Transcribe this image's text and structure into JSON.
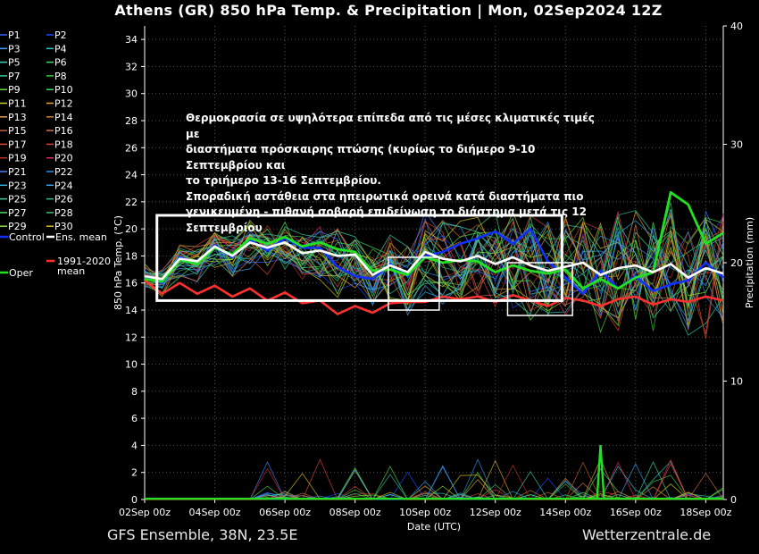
{
  "title": "Athens  (GR)  850 hPa Temp. & Precipitation | Mon, 02Sep2024 12Z",
  "footer_left": "GFS Ensemble, 38N, 23.5E",
  "footer_right": "Wetterzentrale.de",
  "annotation": [
    "Θερμοκρασία σε υψηλότερα επίπεδα από τις μέσες κλιματικές τιμές με",
    "διαστήματα πρόσκαιρης πτώσης (κυρίως το διήμερο 9-10 Σεπτεμβρίου και",
    "το τριήμερο 13-16 Σεπτεμβρίου.",
    "Σποραδική αστάθεια στα ηπειρωτικά ορεινά κατά διαστήματα πιο",
    "γενικευμένη - πιθανή σοβαρή επιδείνωση το διάστημα μετά τις 12",
    "Σεπτεμβρίου"
  ],
  "colors": {
    "ens_mean": "#ffffff",
    "climate_mean": "#ff3030",
    "oper": "#22e022",
    "control": "#1030ff",
    "box": "#ffffff"
  },
  "chart_data": {
    "type": "line",
    "xlabel": "Date (UTC)",
    "ylabel": "850 hPa Temp. (°C)",
    "y2label": "Precipitation (mm)",
    "ylim": [
      0,
      35
    ],
    "y2lim": [
      0,
      40
    ],
    "xlim_days": [
      0,
      16.5
    ],
    "yticks": [
      0,
      2,
      4,
      6,
      8,
      10,
      12,
      14,
      16,
      18,
      20,
      22,
      24,
      26,
      28,
      30,
      32,
      34
    ],
    "y2ticks": [
      0,
      10,
      20,
      30,
      40
    ],
    "xticks": [
      "02Sep 00z",
      "04Sep 00z",
      "06Sep 00z",
      "08Sep 00z",
      "10Sep 00z",
      "12Sep 00z",
      "14Sep 00z",
      "16Sep 00z",
      "18Sep 00z"
    ],
    "legend": [
      {
        "name": "P1",
        "color": "#3060ff"
      },
      {
        "name": "P2",
        "color": "#1848ff"
      },
      {
        "name": "P3",
        "color": "#3aa0ff"
      },
      {
        "name": "P4",
        "color": "#30c0c8"
      },
      {
        "name": "P5",
        "color": "#40d0c0"
      },
      {
        "name": "P6",
        "color": "#40d870"
      },
      {
        "name": "P7",
        "color": "#30c8a0"
      },
      {
        "name": "P8",
        "color": "#38c838"
      },
      {
        "name": "P9",
        "color": "#60e040"
      },
      {
        "name": "P10",
        "color": "#40e060"
      },
      {
        "name": "P11",
        "color": "#c8d020"
      },
      {
        "name": "P12",
        "color": "#d8b030"
      },
      {
        "name": "P13",
        "color": "#e0a040"
      },
      {
        "name": "P14",
        "color": "#d08030"
      },
      {
        "name": "P15",
        "color": "#c86030"
      },
      {
        "name": "P16",
        "color": "#d07050"
      },
      {
        "name": "P17",
        "color": "#e04830"
      },
      {
        "name": "P18",
        "color": "#d84040"
      },
      {
        "name": "P19",
        "color": "#c03028"
      },
      {
        "name": "P20",
        "color": "#e03060"
      },
      {
        "name": "P21",
        "color": "#4080ff"
      },
      {
        "name": "P22",
        "color": "#3090e0"
      },
      {
        "name": "P23",
        "color": "#30b0e0"
      },
      {
        "name": "P24",
        "color": "#40a0f0"
      },
      {
        "name": "P25",
        "color": "#40d0a0"
      },
      {
        "name": "P26",
        "color": "#30c090"
      },
      {
        "name": "P27",
        "color": "#50d850"
      },
      {
        "name": "P28",
        "color": "#40c070"
      },
      {
        "name": "P29",
        "color": "#90e030"
      },
      {
        "name": "P30",
        "color": "#d0c020"
      },
      {
        "name": "Control",
        "color": "#1030ff"
      },
      {
        "name": "Ens. mean",
        "color": "#ffffff"
      },
      {
        "name": "1991-2020 mean",
        "color": "#ff3030"
      },
      {
        "name": "Oper",
        "color": "#22e022"
      }
    ],
    "series": [
      {
        "name": "Ens. mean",
        "x": [
          0.0,
          0.5,
          1.0,
          1.5,
          2.0,
          2.5,
          3.0,
          3.5,
          4.0,
          4.5,
          5.0,
          5.5,
          6.0,
          6.5,
          7.0,
          7.5,
          8.0,
          8.5,
          9.0,
          9.5,
          10.0,
          10.5,
          11.0,
          11.5,
          12.0,
          12.5,
          13.0,
          13.5,
          14.0,
          14.5,
          15.0,
          15.5,
          16.0,
          16.5
        ],
        "y": [
          16.5,
          16.3,
          17.8,
          17.6,
          18.7,
          18.0,
          19.0,
          18.6,
          19.0,
          18.2,
          18.4,
          18.0,
          18.1,
          16.6,
          17.3,
          16.8,
          18.3,
          17.8,
          17.6,
          18.0,
          17.4,
          17.9,
          17.3,
          16.9,
          17.2,
          17.5,
          16.6,
          17.1,
          17.3,
          16.8,
          17.4,
          16.4,
          17.1,
          16.7
        ]
      },
      {
        "name": "1991-2020 mean",
        "x": [
          0.0,
          0.5,
          1.0,
          1.5,
          2.0,
          2.5,
          3.0,
          3.5,
          4.0,
          4.5,
          5.0,
          5.5,
          6.0,
          6.5,
          7.0,
          7.5,
          8.0,
          8.5,
          9.0,
          9.5,
          10.0,
          10.5,
          11.0,
          11.5,
          12.0,
          12.5,
          13.0,
          13.5,
          14.0,
          14.5,
          15.0,
          15.5,
          16.0,
          16.5
        ],
        "y": [
          16.2,
          15.2,
          16.0,
          15.2,
          15.8,
          15.0,
          15.6,
          14.7,
          15.3,
          14.5,
          14.7,
          13.7,
          14.3,
          13.8,
          14.5,
          14.6,
          14.6,
          15.0,
          14.8,
          15.0,
          14.6,
          15.1,
          14.7,
          14.3,
          14.9,
          14.7,
          14.3,
          14.8,
          15.0,
          14.4,
          14.8,
          14.6,
          15.0,
          14.7
        ]
      },
      {
        "name": "Control",
        "x": [
          0.0,
          0.5,
          1.0,
          1.5,
          2.0,
          2.5,
          3.0,
          3.5,
          4.0,
          4.5,
          5.0,
          5.5,
          6.0,
          6.5,
          7.0,
          7.5,
          8.0,
          8.5,
          9.0,
          9.5,
          10.0,
          10.5,
          11.0,
          11.5,
          12.0,
          12.5,
          13.0,
          13.5,
          14.0,
          14.5,
          15.0,
          15.5,
          16.0,
          16.5
        ],
        "y": [
          16.4,
          16.0,
          17.9,
          17.5,
          18.8,
          17.9,
          19.2,
          18.4,
          19.3,
          18.6,
          18.6,
          17.2,
          16.5,
          16.3,
          17.4,
          16.5,
          18.0,
          18.3,
          18.9,
          19.3,
          19.8,
          18.9,
          20.0,
          17.6,
          16.4,
          15.2,
          16.9,
          15.6,
          16.5,
          15.4,
          15.9,
          16.2,
          17.5,
          16.4
        ]
      },
      {
        "name": "Oper",
        "x": [
          0.0,
          0.5,
          1.0,
          1.5,
          2.0,
          2.5,
          3.0,
          3.5,
          4.0,
          4.5,
          5.0,
          5.5,
          6.0,
          6.5,
          7.0,
          7.5,
          8.0,
          8.5,
          9.0,
          9.5,
          10.0,
          10.5,
          11.0,
          11.5,
          12.0,
          12.5,
          13.0,
          13.5,
          14.0,
          14.5,
          15.0,
          15.5,
          16.0,
          16.5
        ],
        "y": [
          16.3,
          16.1,
          17.7,
          17.4,
          18.6,
          18.1,
          19.3,
          18.9,
          19.4,
          18.7,
          19.0,
          18.5,
          18.3,
          16.9,
          17.0,
          16.6,
          17.9,
          17.5,
          17.7,
          17.6,
          16.8,
          17.3,
          16.9,
          16.7,
          17.0,
          15.6,
          16.3,
          15.6,
          16.4,
          16.8,
          22.7,
          21.8,
          18.9,
          19.7
        ]
      }
    ],
    "precip_oper": [
      {
        "x": 12.9,
        "y": 0
      },
      {
        "x": 13.0,
        "y": 4.6
      },
      {
        "x": 13.1,
        "y": 0
      }
    ],
    "boxes": [
      {
        "x0_day": 0.35,
        "x1_day": 11.9,
        "y0": 14.7,
        "y1": 21.0
      },
      {
        "x0_day": 6.95,
        "x1_day": 8.4,
        "y0": 14.0,
        "y1": 17.9
      },
      {
        "x0_day": 10.35,
        "x1_day": 12.2,
        "y0": 13.6,
        "y1": 17.5
      }
    ]
  }
}
